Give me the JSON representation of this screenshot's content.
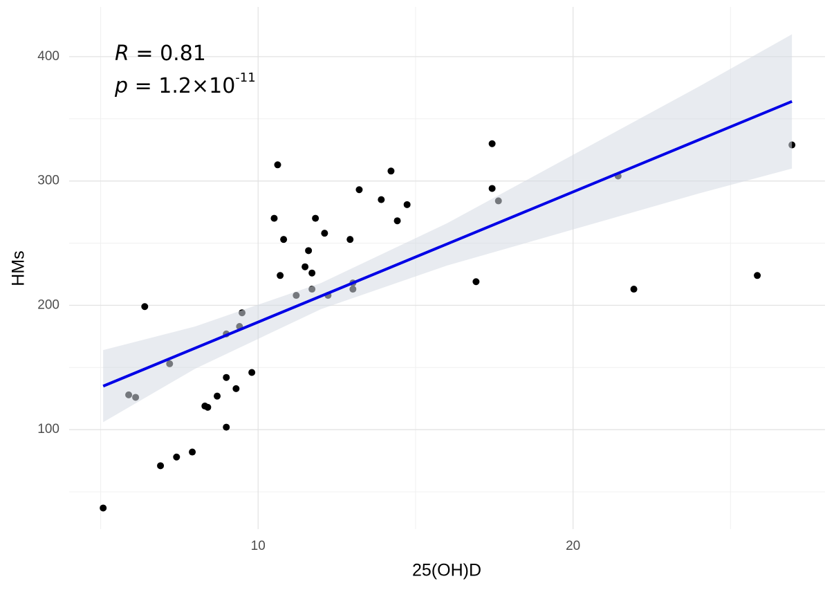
{
  "chart_data": {
    "type": "scatter",
    "x_label": "25(OH)D",
    "y_label": "HMs",
    "annotation": {
      "r_symbol": "R",
      "r_text": " = 0.81",
      "p_symbol": "p",
      "p_text": " = 1.2×10",
      "p_exponent": "-11"
    },
    "xlim": [
      4,
      28
    ],
    "ylim": [
      20,
      440
    ],
    "xticks": [
      10,
      20
    ],
    "yticks": [
      100,
      200,
      300,
      400
    ],
    "x_minor_grid": [
      5,
      15,
      25
    ],
    "y_minor_grid": [
      50,
      150,
      250,
      350
    ],
    "grid": true,
    "point_color": "#000000",
    "x": [
      5.08,
      5.89,
      6.11,
      6.4,
      6.9,
      7.19,
      7.41,
      7.91,
      8.31,
      8.4,
      8.7,
      8.99,
      8.99,
      8.99,
      9.3,
      9.41,
      9.49,
      9.8,
      10.51,
      10.62,
      10.7,
      10.81,
      11.21,
      11.49,
      11.6,
      11.71,
      11.71,
      11.82,
      12.11,
      12.22,
      12.92,
      13.01,
      13.01,
      13.21,
      13.91,
      14.22,
      14.42,
      14.73,
      16.92,
      17.43,
      17.43,
      17.63,
      21.43,
      21.93,
      25.85,
      26.95
    ],
    "values": [
      37,
      128,
      126,
      199,
      71,
      153,
      78,
      82,
      119,
      118,
      127,
      177,
      142,
      102,
      133,
      183,
      194,
      146,
      270,
      313,
      224,
      253,
      208,
      231,
      244,
      226,
      213,
      270,
      258,
      208,
      253,
      218,
      213,
      293,
      285,
      308,
      268,
      281,
      219,
      330,
      294,
      284,
      304,
      213,
      224,
      329
    ],
    "fit": {
      "color": "#0000e6",
      "x": [
        5.08,
        26.95
      ],
      "values": [
        135,
        364
      ]
    },
    "band": {
      "color": "#d5dbe3",
      "x": [
        5.08,
        8,
        12,
        16,
        20,
        24,
        26.95
      ],
      "lower": [
        106,
        149,
        197,
        232,
        261,
        290,
        310
      ],
      "upper": [
        164,
        183,
        218,
        266,
        321,
        376,
        418
      ]
    }
  }
}
